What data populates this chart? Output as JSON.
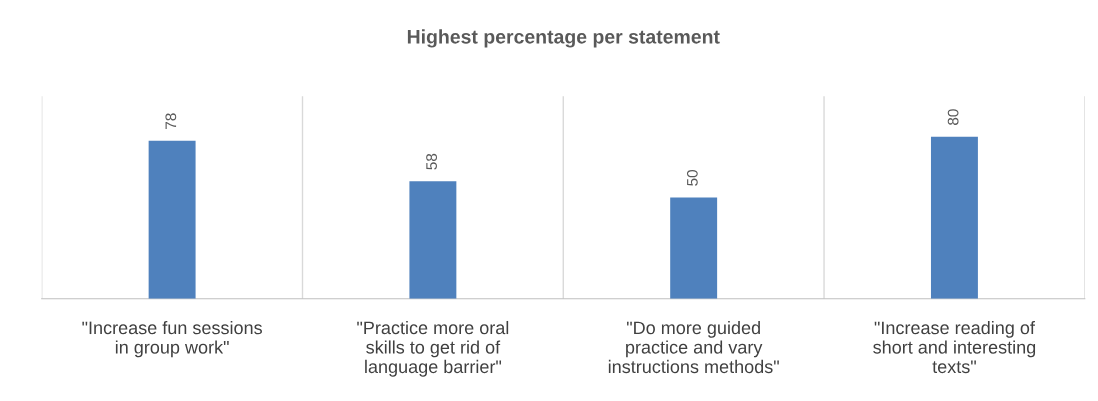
{
  "chart_data": {
    "type": "bar",
    "title": "Highest percentage per statement",
    "categories": [
      "\"Increase fun sessions\nin group work\"",
      "\"Practice more oral\nskills to get rid of\nlanguage barrier\"",
      "\"Do more guided\npractice and vary\ninstructions methods\"",
      "\"Increase reading of\nshort and interesting\ntexts\""
    ],
    "values": [
      78,
      58,
      50,
      80
    ],
    "color": "#4f81bd",
    "ylim": [
      0,
      100
    ],
    "data_labels": true,
    "grid": "x",
    "tick_labels": "x"
  }
}
